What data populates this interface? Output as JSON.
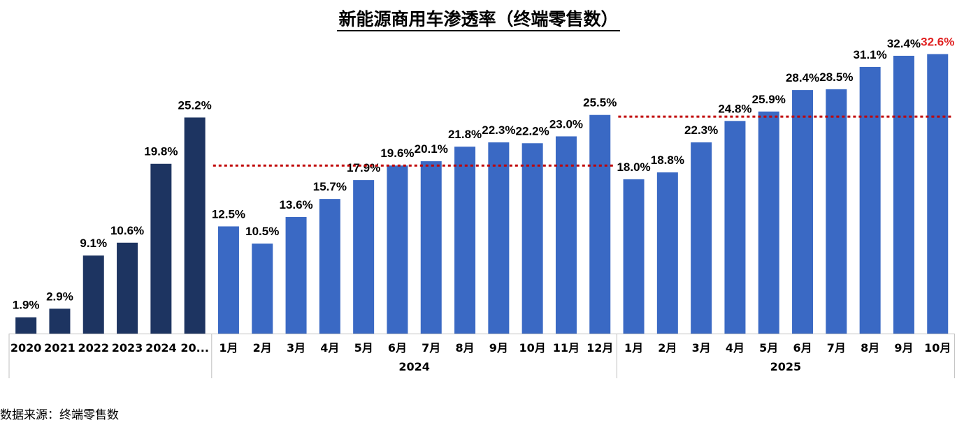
{
  "title": "新能源商用车渗透率（终端零售数）",
  "source": "数据来源：终端零售数",
  "chart_data": {
    "type": "bar",
    "title": "新能源商用车渗透率（终端零售数）",
    "value_suffix": "%",
    "ylim": [
      0,
      35
    ],
    "grid": false,
    "legend": "none",
    "colors": {
      "annual": "#1d3461",
      "monthly": "#3a69c4",
      "highlight_label": "#e02020",
      "average_line": "#c00000"
    },
    "groups": [
      {
        "name": "",
        "kind": "annual",
        "categories": [
          "2020",
          "2021",
          "2022",
          "2023",
          "2024",
          "20..."
        ],
        "values": [
          1.9,
          2.9,
          9.1,
          10.6,
          19.8,
          25.2
        ],
        "labels": [
          "1.9%",
          "2.9%",
          "9.1%",
          "10.6%",
          "19.8%",
          "25.2%"
        ]
      },
      {
        "name": "2024",
        "kind": "monthly",
        "categories": [
          "1月",
          "2月",
          "3月",
          "4月",
          "5月",
          "6月",
          "7月",
          "8月",
          "9月",
          "10月",
          "11月",
          "12月"
        ],
        "values": [
          12.5,
          10.5,
          13.6,
          15.7,
          17.9,
          19.6,
          20.1,
          21.8,
          22.3,
          22.2,
          23.0,
          25.5
        ],
        "labels": [
          "12.5%",
          "10.5%",
          "13.6%",
          "15.7%",
          "17.9%",
          "19.6%",
          "20.1%",
          "21.8%",
          "22.3%",
          "22.2%",
          "23.0%",
          "25.5%"
        ],
        "average": 19.6
      },
      {
        "name": "2025",
        "kind": "monthly",
        "categories": [
          "1月",
          "2月",
          "3月",
          "4月",
          "5月",
          "6月",
          "7月",
          "8月",
          "9月",
          "10月"
        ],
        "values": [
          18.0,
          18.8,
          22.3,
          24.8,
          25.9,
          28.4,
          28.5,
          31.1,
          32.4,
          32.6
        ],
        "labels": [
          "18.0%",
          "18.8%",
          "22.3%",
          "24.8%",
          "25.9%",
          "28.4%",
          "28.5%",
          "31.1%",
          "32.4%",
          "32.6%"
        ],
        "average": 25.3,
        "highlight_last": true
      }
    ]
  }
}
